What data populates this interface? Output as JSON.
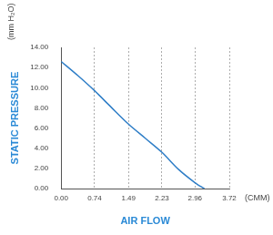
{
  "chart_data": {
    "type": "line",
    "x_label": "AIR FLOW",
    "y_label": "STATIC PRESSURE",
    "annotations": [
      "(mm H₂O)",
      "(CMM)"
    ],
    "x": [
      0,
      0.37,
      0.74,
      1.1,
      1.49,
      1.86,
      2.23,
      2.6,
      2.96,
      3.17
    ],
    "values": [
      12.6,
      11.2,
      9.7,
      8.1,
      6.4,
      5.0,
      3.6,
      1.9,
      0.6,
      0
    ],
    "color": "#2f7ec7",
    "xlim": [
      0,
      3.72
    ],
    "xticks": [
      {
        "value": 0,
        "label": "0.00"
      },
      0.74,
      1.49,
      2.23,
      2.96,
      3.72
    ],
    "ylim": [
      0,
      14
    ],
    "yticks": [
      {
        "value": 0,
        "label": "0.00"
      },
      {
        "value": 2,
        "label": "2.00"
      },
      {
        "value": 4,
        "label": "4.00"
      },
      {
        "value": 6,
        "label": "6.00"
      },
      {
        "value": 8,
        "label": "8.00"
      },
      {
        "value": 10,
        "label": "10.00"
      },
      {
        "value": 12,
        "label": "12.00"
      },
      {
        "value": 14,
        "label": "14.00"
      }
    ],
    "grid": true
  }
}
